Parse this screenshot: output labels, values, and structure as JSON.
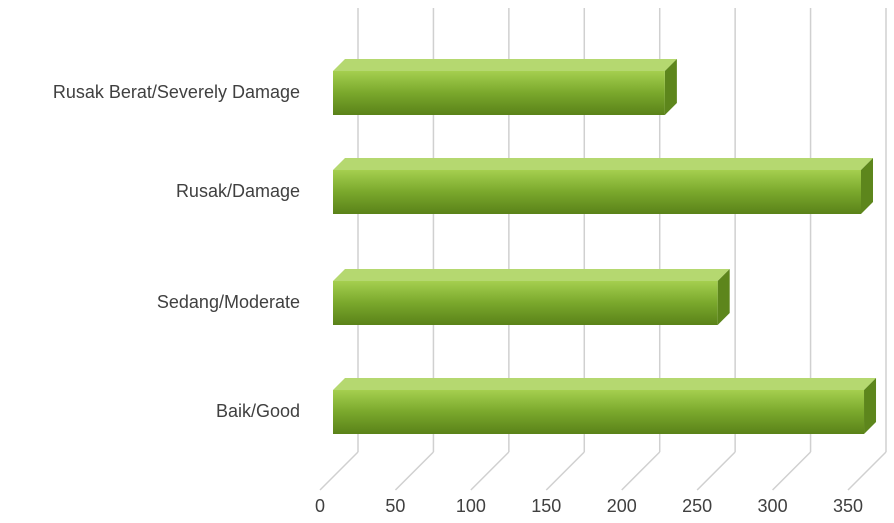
{
  "chart_data": {
    "type": "bar",
    "orientation": "horizontal",
    "categories": [
      "Rusak Berat/Severely Damage",
      "Rusak/Damage",
      "Sedang/Moderate",
      "Baik/Good"
    ],
    "values": [
      220,
      350,
      255,
      352
    ],
    "color": "#7aa82c",
    "xlim": [
      0,
      350
    ],
    "xticks": [
      0,
      50,
      100,
      150,
      200,
      250,
      300,
      350
    ],
    "grid": true
  }
}
